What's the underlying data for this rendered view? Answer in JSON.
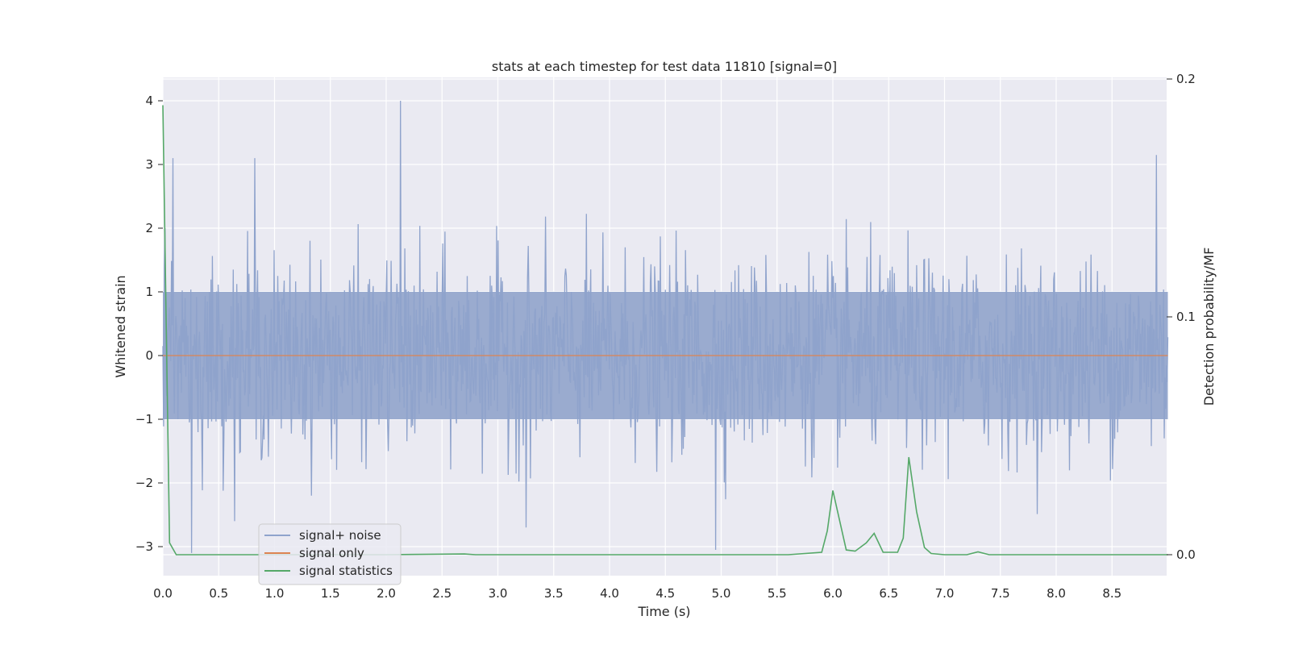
{
  "chart_data": {
    "type": "line",
    "title": "stats at each timestep for test data 11810 [signal=0]",
    "xlabel": "Time (s)",
    "ylabel": "Whitened strain",
    "y2label": "Detection probability/MF",
    "xlim": [
      0,
      9.0
    ],
    "ylim": [
      -3.5,
      4.3
    ],
    "y2lim": [
      -0.009,
      0.2
    ],
    "xticks": [
      "0.0",
      "0.5",
      "1.0",
      "1.5",
      "2.0",
      "2.5",
      "3.0",
      "3.5",
      "4.0",
      "4.5",
      "5.0",
      "5.5",
      "6.0",
      "6.5",
      "7.0",
      "7.5",
      "8.0",
      "8.5"
    ],
    "yticks": [
      "−3",
      "−2",
      "−1",
      "0",
      "1",
      "2",
      "3",
      "4"
    ],
    "y2ticks": [
      "0.0",
      "0.1",
      "0.2"
    ],
    "grid": true,
    "legend_position": "lower-left",
    "series": [
      {
        "name": "signal+ noise",
        "axis": "left",
        "color": "#8fa3cc",
        "description_of_values": "dense whitened noise, mostly within [-2.5, 2.5], peaks near 4.0 at t≈2.13 and -3.1 at t≈0.26 and t≈4.95",
        "peaks": [
          {
            "x": 0.02,
            "y": 2.0
          },
          {
            "x": 0.09,
            "y": 3.1
          },
          {
            "x": 0.82,
            "y": 3.1
          },
          {
            "x": 2.13,
            "y": 4.0
          },
          {
            "x": 8.9,
            "y": 3.15
          },
          {
            "x": 0.26,
            "y": -3.1
          },
          {
            "x": 4.95,
            "y": -3.05
          },
          {
            "x": 3.25,
            "y": -2.7
          }
        ]
      },
      {
        "name": "signal only",
        "axis": "left",
        "color": "#dd8452",
        "x": [
          0.0,
          9.0
        ],
        "y": [
          0,
          0
        ]
      },
      {
        "name": "signal statistics",
        "axis": "right",
        "color": "#55a868",
        "x": [
          0.0,
          0.06,
          0.12,
          0.5,
          1.0,
          2.0,
          2.7,
          2.8,
          3.0,
          4.0,
          5.0,
          5.6,
          5.9,
          5.95,
          6.0,
          6.12,
          6.2,
          6.3,
          6.37,
          6.45,
          6.58,
          6.63,
          6.68,
          6.75,
          6.82,
          6.88,
          7.0,
          7.2,
          7.3,
          7.4,
          8.0,
          9.0
        ],
        "y": [
          0.189,
          0.005,
          0.0,
          0.0,
          0.0,
          0.0,
          0.0003,
          0.0,
          0.0,
          0.0,
          0.0,
          0.0,
          0.001,
          0.01,
          0.027,
          0.002,
          0.0015,
          0.005,
          0.009,
          0.001,
          0.001,
          0.007,
          0.041,
          0.018,
          0.003,
          0.0005,
          0.0,
          0.0,
          0.0012,
          0.0,
          0.0,
          0.0
        ]
      }
    ]
  }
}
